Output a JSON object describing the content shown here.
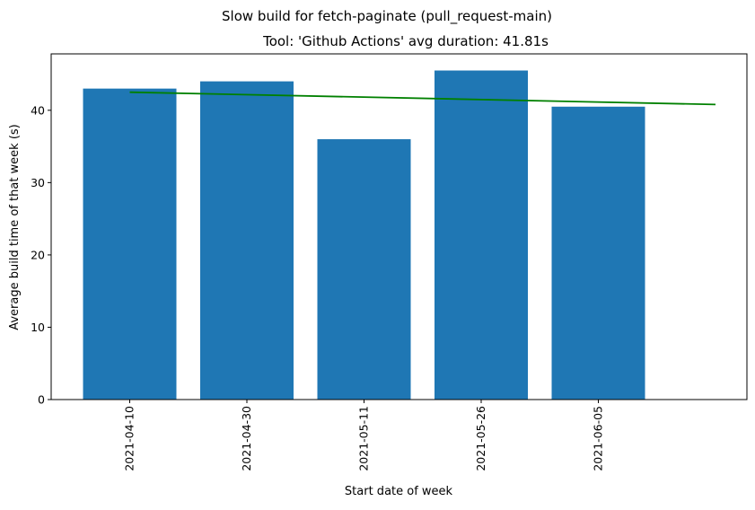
{
  "chart_data": {
    "type": "bar",
    "suptitle": "Slow build for fetch-paginate (pull_request-main)",
    "title": "Tool: 'Github Actions' avg duration: 41.81s",
    "xlabel": "Start date of week",
    "ylabel": "Average build time of that week (s)",
    "categories": [
      "2021-04-10",
      "2021-04-30",
      "2021-05-11",
      "2021-05-26",
      "2021-06-05"
    ],
    "values": [
      43.0,
      44.0,
      36.0,
      45.5,
      40.5
    ],
    "ylim": [
      0,
      47.8
    ],
    "yticks": [
      0,
      10,
      20,
      30,
      40
    ],
    "trendline": {
      "start": 42.5,
      "end": 40.8
    },
    "grid": false,
    "legend": "none",
    "colors": {
      "bar": "#1f77b4",
      "trendline": "#008000"
    }
  }
}
